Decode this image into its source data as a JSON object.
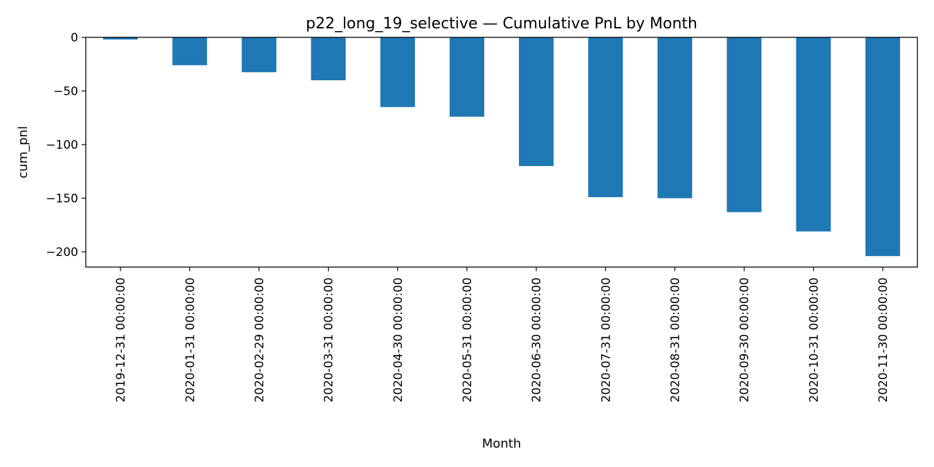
{
  "chart_data": {
    "type": "bar",
    "title": "p22_long_19_selective — Cumulative PnL by Month",
    "xlabel": "Month",
    "ylabel": "cum_pnl",
    "categories": [
      "2019-12-31 00:00:00",
      "2020-01-31 00:00:00",
      "2020-02-29 00:00:00",
      "2020-03-31 00:00:00",
      "2020-04-30 00:00:00",
      "2020-05-31 00:00:00",
      "2020-06-30 00:00:00",
      "2020-07-31 00:00:00",
      "2020-08-31 00:00:00",
      "2020-09-30 00:00:00",
      "2020-10-31 00:00:00",
      "2020-11-30 00:00:00"
    ],
    "values": [
      -2,
      -26,
      -32.5,
      -40,
      -65,
      -74,
      -120,
      -149,
      -150,
      -163,
      -181,
      -204
    ],
    "yticks": [
      0,
      -50,
      -100,
      -150,
      -200
    ],
    "ylim": [
      -214.2,
      0
    ],
    "bar_color": "#1f77b4",
    "grid": false,
    "legend": "none"
  }
}
